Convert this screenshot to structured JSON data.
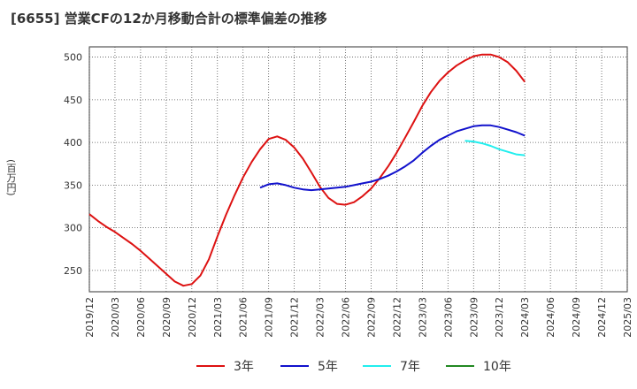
{
  "title": "[6655]  営業CFの12か月移動合計の標準偏差の推移",
  "chart_data": {
    "type": "line",
    "title": "[6655]  営業CFの12か月移動合計の標準偏差の推移",
    "ylabel": "(百万円)",
    "xlabel": "",
    "ylim": [
      225,
      512
    ],
    "yticks": [
      250,
      300,
      350,
      400,
      450,
      500
    ],
    "xticks": [
      "2019/12",
      "2020/03",
      "2020/06",
      "2020/09",
      "2020/12",
      "2021/03",
      "2021/06",
      "2021/09",
      "2021/12",
      "2022/03",
      "2022/06",
      "2022/09",
      "2022/12",
      "2023/03",
      "2023/06",
      "2023/09",
      "2023/12",
      "2024/03",
      "2024/06",
      "2024/09",
      "2024/12",
      "2025/03"
    ],
    "grid": true,
    "legend_position": "bottom",
    "series": [
      {
        "name": "3年",
        "color": "#dd1111",
        "points": [
          [
            "2019/12",
            316
          ],
          [
            "2020/01",
            308
          ],
          [
            "2020/02",
            301
          ],
          [
            "2020/03",
            295
          ],
          [
            "2020/04",
            288
          ],
          [
            "2020/05",
            281
          ],
          [
            "2020/06",
            273
          ],
          [
            "2020/07",
            264
          ],
          [
            "2020/08",
            255
          ],
          [
            "2020/09",
            246
          ],
          [
            "2020/10",
            237
          ],
          [
            "2020/11",
            232
          ],
          [
            "2020/12",
            234
          ],
          [
            "2021/01",
            244
          ],
          [
            "2021/02",
            263
          ],
          [
            "2021/03",
            290
          ],
          [
            "2021/04",
            315
          ],
          [
            "2021/05",
            338
          ],
          [
            "2021/06",
            359
          ],
          [
            "2021/07",
            377
          ],
          [
            "2021/08",
            392
          ],
          [
            "2021/09",
            404
          ],
          [
            "2021/10",
            407
          ],
          [
            "2021/11",
            403
          ],
          [
            "2021/12",
            394
          ],
          [
            "2022/01",
            381
          ],
          [
            "2022/02",
            365
          ],
          [
            "2022/03",
            348
          ],
          [
            "2022/04",
            335
          ],
          [
            "2022/05",
            328
          ],
          [
            "2022/06",
            327
          ],
          [
            "2022/07",
            330
          ],
          [
            "2022/08",
            337
          ],
          [
            "2022/09",
            346
          ],
          [
            "2022/10",
            358
          ],
          [
            "2022/11",
            372
          ],
          [
            "2022/12",
            388
          ],
          [
            "2023/01",
            406
          ],
          [
            "2023/02",
            424
          ],
          [
            "2023/03",
            443
          ],
          [
            "2023/04",
            459
          ],
          [
            "2023/05",
            472
          ],
          [
            "2023/06",
            482
          ],
          [
            "2023/07",
            490
          ],
          [
            "2023/08",
            496
          ],
          [
            "2023/09",
            501
          ],
          [
            "2023/10",
            503
          ],
          [
            "2023/11",
            503
          ],
          [
            "2023/12",
            500
          ],
          [
            "2024/01",
            494
          ],
          [
            "2024/02",
            484
          ],
          [
            "2024/03",
            471
          ]
        ]
      },
      {
        "name": "5年",
        "color": "#1111cc",
        "points": [
          [
            "2021/08",
            347
          ],
          [
            "2021/09",
            351
          ],
          [
            "2021/10",
            352
          ],
          [
            "2021/11",
            350
          ],
          [
            "2021/12",
            347
          ],
          [
            "2022/01",
            345
          ],
          [
            "2022/02",
            344
          ],
          [
            "2022/03",
            345
          ],
          [
            "2022/04",
            346
          ],
          [
            "2022/05",
            347
          ],
          [
            "2022/06",
            348
          ],
          [
            "2022/07",
            350
          ],
          [
            "2022/08",
            352
          ],
          [
            "2022/09",
            354
          ],
          [
            "2022/10",
            357
          ],
          [
            "2022/11",
            361
          ],
          [
            "2022/12",
            366
          ],
          [
            "2023/01",
            372
          ],
          [
            "2023/02",
            379
          ],
          [
            "2023/03",
            388
          ],
          [
            "2023/04",
            396
          ],
          [
            "2023/05",
            403
          ],
          [
            "2023/06",
            408
          ],
          [
            "2023/07",
            413
          ],
          [
            "2023/08",
            416
          ],
          [
            "2023/09",
            419
          ],
          [
            "2023/10",
            420
          ],
          [
            "2023/11",
            420
          ],
          [
            "2023/12",
            418
          ],
          [
            "2024/01",
            415
          ],
          [
            "2024/02",
            412
          ],
          [
            "2024/03",
            408
          ]
        ]
      },
      {
        "name": "7年",
        "color": "#22eeee",
        "points": [
          [
            "2023/08",
            402
          ],
          [
            "2023/09",
            401
          ],
          [
            "2023/10",
            399
          ],
          [
            "2023/11",
            396
          ],
          [
            "2023/12",
            392
          ],
          [
            "2024/01",
            389
          ],
          [
            "2024/02",
            386
          ],
          [
            "2024/03",
            385
          ]
        ]
      },
      {
        "name": "10年",
        "color": "#228822",
        "points": []
      }
    ]
  }
}
